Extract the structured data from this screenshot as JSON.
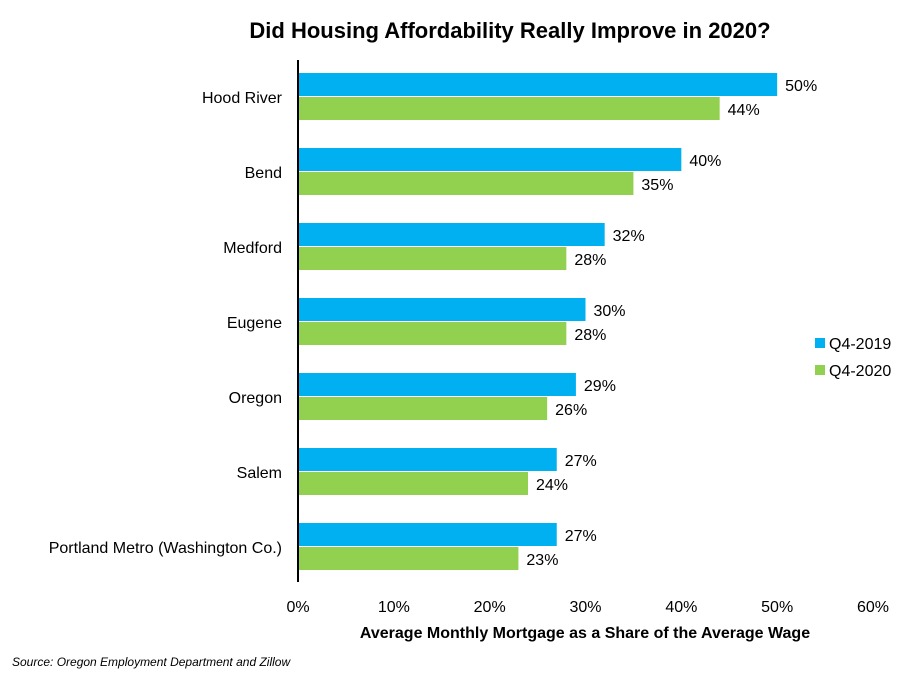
{
  "chart_data": {
    "type": "bar",
    "orientation": "horizontal",
    "title": "Did Housing Affordability Really Improve in 2020?",
    "xlabel": "Average Monthly Mortgage as a Share of the Average Wage",
    "ylabel": "",
    "categories": [
      "Hood River",
      "Bend",
      "Medford",
      "Eugene",
      "Oregon",
      "Salem",
      "Portland Metro (Washington Co.)"
    ],
    "series": [
      {
        "name": "Q4-2019",
        "color": "#00b0f0",
        "values": [
          50,
          40,
          32,
          30,
          29,
          27,
          27
        ],
        "labels": [
          "50%",
          "40%",
          "32%",
          "30%",
          "29%",
          "27%",
          "27%"
        ]
      },
      {
        "name": "Q4-2020",
        "color": "#92d050",
        "values": [
          44,
          35,
          28,
          28,
          26,
          24,
          23
        ],
        "labels": [
          "44%",
          "35%",
          "28%",
          "28%",
          "26%",
          "24%",
          "23%"
        ]
      }
    ],
    "xlim": [
      0,
      60
    ],
    "xticks": [
      0,
      10,
      20,
      30,
      40,
      50,
      60
    ],
    "xtick_labels": [
      "0%",
      "10%",
      "20%",
      "30%",
      "40%",
      "50%",
      "60%"
    ],
    "grid": false,
    "legend_position": "right"
  },
  "source": "Source: Oregon Employment Department and Zillow"
}
